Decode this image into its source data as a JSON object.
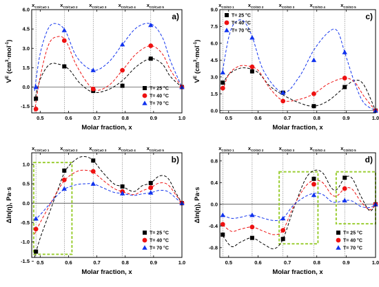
{
  "colors": {
    "s25": "#000000",
    "s40": "#ee1111",
    "s70": "#1133ee",
    "box": "#9acd32"
  },
  "chart_data": [
    {
      "id": "a",
      "type": "scatter",
      "panel_label": "a)",
      "xlabel": "Molar fraction, x",
      "ylabel": "V",
      "ylabel_sup": "E",
      "ylabel_rest": " (cm",
      "ylabel_sup2": "3",
      "ylabel_rest2": "·mol",
      "ylabel_sup3": "-1",
      "ylabel_end": ")",
      "xlim": [
        0.47,
        1.0
      ],
      "ylim": [
        -2.0,
        6.0
      ],
      "xticks": [
        "0.5",
        "0.6",
        "0.7",
        "0.8",
        "0.9",
        "1.0"
      ],
      "xtick_values": [
        0.5,
        0.6,
        0.7,
        0.8,
        0.9,
        1.0
      ],
      "yticks": [
        "-1.5",
        "0.0",
        "1.5",
        "3.0",
        "4.5",
        "6.0"
      ],
      "ytick_values": [
        -1.5,
        0,
        1.5,
        3.0,
        4.5,
        6.0
      ],
      "top_labels": [
        {
          "main": "x",
          "sub": "CO/CaO 1",
          "x": 0.485
        },
        {
          "main": "x",
          "sub": "CO/CaO 2",
          "x": 0.585
        },
        {
          "main": "x",
          "sub": "CO/CaO 3",
          "x": 0.687
        },
        {
          "main": "x",
          "sub": "CO/CaO 4",
          "x": 0.79
        },
        {
          "main": "x",
          "sub": "CO/CaO 5",
          "x": 0.89
        }
      ],
      "vlines": [
        0.485,
        0.585,
        0.687,
        0.79,
        0.89
      ],
      "legend_position": "bottom-right",
      "series": [
        {
          "name": "T= 25 °C",
          "marker": "square",
          "color": "#000000",
          "x": [
            0.485,
            0.585,
            0.687,
            0.79,
            0.89,
            1.0
          ],
          "y": [
            -0.9,
            1.6,
            -0.3,
            0.1,
            2.2,
            0.0
          ],
          "curve_x": [
            0.48,
            0.5,
            0.53,
            0.56,
            0.6,
            0.64,
            0.687,
            0.74,
            0.79,
            0.84,
            0.89,
            0.93,
            0.96,
            1.0
          ],
          "curve_y": [
            -1.1,
            0.6,
            1.7,
            1.8,
            1.4,
            0.3,
            -0.4,
            -0.2,
            0.5,
            1.6,
            2.2,
            1.8,
            0.8,
            0.0
          ]
        },
        {
          "name": "T= 40 °C",
          "marker": "circle",
          "color": "#ee1111",
          "x": [
            0.485,
            0.585,
            0.687,
            0.79,
            0.89,
            1.0
          ],
          "y": [
            -1.7,
            3.6,
            -0.15,
            1.3,
            3.2,
            0.0
          ],
          "curve_x": [
            0.48,
            0.5,
            0.53,
            0.56,
            0.59,
            0.63,
            0.687,
            0.74,
            0.79,
            0.84,
            0.89,
            0.93,
            0.96,
            1.0
          ],
          "curve_y": [
            -1.9,
            0.8,
            3.3,
            3.9,
            3.6,
            1.6,
            -0.15,
            0.1,
            1.3,
            2.6,
            3.2,
            2.6,
            1.3,
            0.0
          ]
        },
        {
          "name": "T= 70 °C",
          "marker": "triangle",
          "color": "#1133ee",
          "x": [
            0.485,
            0.585,
            0.687,
            0.79,
            0.89,
            1.0
          ],
          "y": [
            0.0,
            4.4,
            1.3,
            3.3,
            4.8,
            0.0
          ],
          "curve_x": [
            0.48,
            0.5,
            0.53,
            0.56,
            0.59,
            0.63,
            0.687,
            0.74,
            0.79,
            0.84,
            0.89,
            0.93,
            0.96,
            1.0
          ],
          "curve_y": [
            -0.3,
            2.6,
            4.6,
            4.9,
            4.3,
            2.3,
            1.3,
            1.9,
            3.3,
            4.6,
            4.9,
            3.9,
            2.0,
            0.0
          ]
        }
      ]
    },
    {
      "id": "c",
      "type": "scatter",
      "panel_label": "c)",
      "xlabel": "Molar fraction, x",
      "ylabel": "V",
      "ylabel_sup": "E",
      "ylabel_rest": " (cm",
      "ylabel_sup2": "3",
      "ylabel_rest2": "·mol",
      "ylabel_sup3": "-1",
      "ylabel_end": ")",
      "xlim": [
        0.47,
        1.0
      ],
      "ylim": [
        -0.2,
        9.0
      ],
      "xticks": [
        "0.5",
        "0.6",
        "0.7",
        "0.8",
        "0.9",
        "1.0"
      ],
      "xtick_values": [
        0.5,
        0.6,
        0.7,
        0.8,
        0.9,
        1.0
      ],
      "yticks": [
        "0.0",
        "1.5",
        "3.0",
        "4.5",
        "6.0",
        "7.5",
        "9.0"
      ],
      "ytick_values": [
        0,
        1.5,
        3.0,
        4.5,
        6.0,
        7.5,
        9.0
      ],
      "top_labels": [
        {
          "main": "x",
          "sub": "CO/SO 1",
          "x": 0.48
        },
        {
          "main": "x",
          "sub": "CO/SO 2",
          "x": 0.58
        },
        {
          "main": "x",
          "sub": "CO/SO 3",
          "x": 0.685
        },
        {
          "main": "x",
          "sub": "CO/SO 4",
          "x": 0.79
        },
        {
          "main": "x",
          "sub": "CO/SO 5",
          "x": 0.895
        }
      ],
      "vlines": [
        0.48,
        0.58,
        0.685,
        0.79,
        0.895
      ],
      "legend_position": "top-left",
      "series": [
        {
          "name": "T= 25 °C",
          "marker": "square",
          "color": "#000000",
          "x": [
            0.48,
            0.58,
            0.685,
            0.79,
            0.895,
            1.0
          ],
          "y": [
            2.5,
            3.5,
            1.6,
            0.4,
            2.1,
            0.0
          ],
          "curve_x": [
            0.48,
            0.5,
            0.53,
            0.56,
            0.6,
            0.64,
            0.685,
            0.74,
            0.79,
            0.84,
            0.895,
            0.93,
            0.96,
            1.0
          ],
          "curve_y": [
            2.4,
            3.2,
            3.7,
            3.8,
            3.4,
            2.2,
            1.4,
            0.7,
            0.4,
            0.9,
            2.1,
            2.7,
            2.3,
            0.0
          ]
        },
        {
          "name": "T= 40 °C",
          "marker": "circle",
          "color": "#ee1111",
          "x": [
            0.48,
            0.58,
            0.685,
            0.79,
            0.895,
            1.0
          ],
          "y": [
            2.0,
            3.9,
            0.85,
            1.5,
            2.9,
            0.0
          ],
          "curve_x": [
            0.48,
            0.5,
            0.53,
            0.56,
            0.6,
            0.64,
            0.685,
            0.74,
            0.79,
            0.84,
            0.895,
            0.93,
            0.96,
            1.0
          ],
          "curve_y": [
            1.8,
            3.2,
            3.9,
            4.0,
            3.6,
            2.0,
            0.9,
            1.0,
            1.5,
            2.4,
            2.9,
            2.5,
            1.3,
            0.0
          ]
        },
        {
          "name": "T= 70 °C",
          "marker": "triangle",
          "color": "#1133ee",
          "x": [
            0.48,
            0.58,
            0.685,
            0.79,
            0.895,
            1.0
          ],
          "y": [
            3.4,
            6.5,
            1.6,
            4.5,
            5.2,
            0.0
          ],
          "curve_x": [
            0.48,
            0.5,
            0.52,
            0.55,
            0.58,
            0.62,
            0.685,
            0.74,
            0.79,
            0.84,
            0.87,
            0.895,
            0.93,
            0.96,
            1.0
          ],
          "curve_y": [
            3.6,
            6.5,
            7.8,
            8.0,
            6.6,
            3.5,
            1.6,
            3.0,
            5.4,
            7.0,
            7.1,
            5.2,
            2.4,
            0.7,
            0.0
          ]
        }
      ]
    },
    {
      "id": "b",
      "type": "scatter",
      "panel_label": "b)",
      "xlabel": "Molar fraction, x",
      "ylabel": "Δln(η), Pa·s",
      "xlim": [
        0.47,
        1.0
      ],
      "ylim": [
        -1.4,
        1.3
      ],
      "xticks": [
        "0.5",
        "0.6",
        "0.7",
        "0.8",
        "0.9",
        "1.0"
      ],
      "xtick_values": [
        0.5,
        0.6,
        0.7,
        0.8,
        0.9,
        1.0
      ],
      "yticks": [
        "-1.5",
        "-1.0",
        "-0.5",
        "0.0",
        "0.5",
        "1.0"
      ],
      "ytick_values": [
        -1.5,
        -1.0,
        -0.5,
        0,
        0.5,
        1.0
      ],
      "top_labels": [
        {
          "main": "x",
          "sub": "CO/CaO 1",
          "x": 0.485
        },
        {
          "main": "x",
          "sub": "CO/CaO 2",
          "x": 0.585
        },
        {
          "main": "x",
          "sub": "CO/CaO 3",
          "x": 0.687
        },
        {
          "main": "x",
          "sub": "CO/CaO 4",
          "x": 0.79
        },
        {
          "main": "x",
          "sub": "CO/CaO 5",
          "x": 0.89
        }
      ],
      "vlines": [
        0.485,
        0.585,
        0.687,
        0.79,
        0.89
      ],
      "boxes": [
        {
          "x0": 0.477,
          "x1": 0.612,
          "y0": -1.32,
          "y1": 1.05
        }
      ],
      "legend_position": "bottom-right",
      "series": [
        {
          "name": "T= 25 °C",
          "marker": "square",
          "color": "#000000",
          "x": [
            0.485,
            0.585,
            0.687,
            0.79,
            0.89,
            1.0
          ],
          "y": [
            -1.25,
            0.84,
            1.1,
            0.43,
            0.52,
            0.0
          ],
          "curve_x": [
            0.48,
            0.5,
            0.53,
            0.56,
            0.59,
            0.63,
            0.66,
            0.687,
            0.72,
            0.76,
            0.79,
            0.83,
            0.86,
            0.89,
            0.92,
            0.95,
            0.98,
            1.0
          ],
          "curve_y": [
            -1.4,
            -0.9,
            -0.3,
            0.3,
            0.85,
            1.15,
            1.2,
            1.1,
            0.8,
            0.5,
            0.43,
            0.3,
            0.45,
            0.52,
            0.7,
            0.65,
            0.25,
            0.0
          ]
        },
        {
          "name": "T= 40 °C",
          "marker": "circle",
          "color": "#ee1111",
          "x": [
            0.485,
            0.585,
            0.687,
            0.79,
            0.89,
            1.0
          ],
          "y": [
            -0.67,
            0.6,
            0.82,
            0.3,
            0.4,
            0.0
          ],
          "curve_x": [
            0.48,
            0.5,
            0.53,
            0.56,
            0.59,
            0.63,
            0.66,
            0.687,
            0.72,
            0.76,
            0.79,
            0.83,
            0.86,
            0.89,
            0.92,
            0.95,
            0.98,
            1.0
          ],
          "curve_y": [
            -0.8,
            -0.5,
            -0.1,
            0.3,
            0.62,
            0.82,
            0.85,
            0.8,
            0.6,
            0.38,
            0.3,
            0.22,
            0.32,
            0.4,
            0.52,
            0.48,
            0.2,
            0.0
          ]
        },
        {
          "name": "T= 70 °C",
          "marker": "triangle",
          "color": "#1133ee",
          "x": [
            0.485,
            0.585,
            0.687,
            0.79,
            0.89,
            1.0
          ],
          "y": [
            -0.4,
            0.37,
            0.5,
            0.25,
            0.27,
            0.0
          ],
          "curve_x": [
            0.48,
            0.5,
            0.53,
            0.56,
            0.59,
            0.63,
            0.66,
            0.687,
            0.72,
            0.76,
            0.79,
            0.83,
            0.86,
            0.89,
            0.92,
            0.95,
            0.98,
            1.0
          ],
          "curve_y": [
            -0.45,
            -0.3,
            -0.05,
            0.2,
            0.38,
            0.48,
            0.5,
            0.5,
            0.4,
            0.28,
            0.25,
            0.2,
            0.24,
            0.27,
            0.33,
            0.3,
            0.12,
            0.0
          ]
        }
      ]
    },
    {
      "id": "d",
      "type": "scatter",
      "panel_label": "d)",
      "xlabel": "Molar fraction, x",
      "ylabel": "Δln(η), Pa·s",
      "xlim": [
        0.47,
        1.0
      ],
      "ylim": [
        -0.98,
        0.95
      ],
      "xticks": [
        "0.5",
        "0.6",
        "0.7",
        "0.8",
        "0.9",
        "1.0"
      ],
      "xtick_values": [
        0.5,
        0.6,
        0.7,
        0.8,
        0.9,
        1.0
      ],
      "yticks": [
        "-0.8",
        "-0.4",
        "0.0",
        "0.4",
        "0.8"
      ],
      "ytick_values": [
        -0.8,
        -0.4,
        0,
        0.4,
        0.8
      ],
      "top_labels": [
        {
          "main": "x",
          "sub": "CO/SO 1",
          "x": 0.48
        },
        {
          "main": "x",
          "sub": "CO/SO 2",
          "x": 0.58
        },
        {
          "main": "x",
          "sub": "CO/SO 3",
          "x": 0.685
        },
        {
          "main": "x",
          "sub": "CO/SO 4",
          "x": 0.79
        },
        {
          "main": "x",
          "sub": "CO/SO 5",
          "x": 0.895
        }
      ],
      "vlines": [
        0.48,
        0.58,
        0.685,
        0.79,
        0.895
      ],
      "boxes": [
        {
          "x0": 0.672,
          "x1": 0.804,
          "y0": -0.73,
          "y1": 0.6
        },
        {
          "x0": 0.866,
          "x1": 1.0,
          "y0": -0.36,
          "y1": 0.6
        }
      ],
      "legend_position": "bottom-right",
      "series": [
        {
          "name": "T= 25 °C",
          "marker": "square",
          "color": "#000000",
          "x": [
            0.48,
            0.58,
            0.685,
            0.79,
            0.895,
            1.0
          ],
          "y": [
            -0.56,
            -0.62,
            -0.64,
            0.47,
            0.49,
            0.0
          ],
          "curve_x": [
            0.48,
            0.51,
            0.54,
            0.58,
            0.62,
            0.655,
            0.685,
            0.72,
            0.76,
            0.79,
            0.82,
            0.85,
            0.87,
            0.895,
            0.92,
            0.95,
            0.98,
            1.0
          ],
          "curve_y": [
            -0.58,
            -0.78,
            -0.7,
            -0.62,
            -0.74,
            -0.82,
            -0.64,
            -0.1,
            0.45,
            0.62,
            0.58,
            0.3,
            0.28,
            0.49,
            0.48,
            0.15,
            -0.12,
            0.0
          ]
        },
        {
          "name": "T= 40 °C",
          "marker": "circle",
          "color": "#ee1111",
          "x": [
            0.48,
            0.58,
            0.685,
            0.79,
            0.895,
            1.0
          ],
          "y": [
            -0.37,
            -0.42,
            -0.48,
            0.37,
            0.29,
            0.0
          ],
          "curve_x": [
            0.48,
            0.51,
            0.54,
            0.58,
            0.62,
            0.655,
            0.685,
            0.72,
            0.76,
            0.79,
            0.82,
            0.85,
            0.87,
            0.895,
            0.92,
            0.95,
            0.98,
            1.0
          ],
          "curve_y": [
            -0.38,
            -0.5,
            -0.46,
            -0.42,
            -0.5,
            -0.56,
            -0.48,
            -0.05,
            0.32,
            0.44,
            0.4,
            0.18,
            0.16,
            0.29,
            0.28,
            0.05,
            -0.1,
            0.0
          ]
        },
        {
          "name": "T= 70 °C",
          "marker": "triangle",
          "color": "#1133ee",
          "x": [
            0.48,
            0.58,
            0.685,
            0.79,
            0.895,
            1.0
          ],
          "y": [
            -0.2,
            -0.2,
            -0.26,
            0.17,
            0.07,
            0.0
          ],
          "curve_x": [
            0.48,
            0.51,
            0.54,
            0.58,
            0.62,
            0.655,
            0.685,
            0.72,
            0.76,
            0.79,
            0.82,
            0.85,
            0.87,
            0.895,
            0.92,
            0.95,
            0.98,
            1.0
          ],
          "curve_y": [
            -0.2,
            -0.26,
            -0.24,
            -0.2,
            -0.26,
            -0.3,
            -0.26,
            -0.02,
            0.14,
            0.2,
            0.18,
            0.05,
            0.04,
            0.07,
            0.06,
            -0.04,
            -0.06,
            0.0
          ]
        }
      ]
    }
  ]
}
